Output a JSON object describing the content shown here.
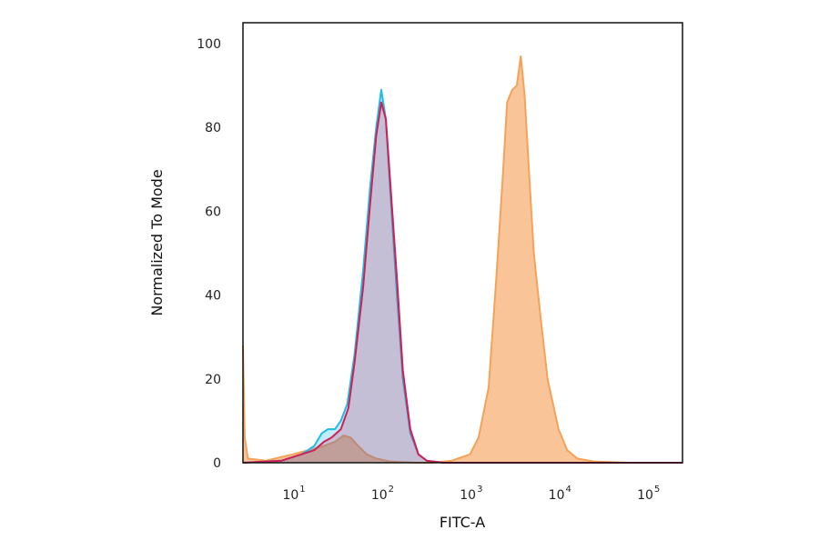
{
  "chart_data": {
    "type": "area",
    "title": "",
    "xlabel": "FITC-A",
    "ylabel": "Normalized To Mode",
    "x_scale": "log",
    "xlim": [
      2.2,
      200000
    ],
    "ylim": [
      0,
      105
    ],
    "y_ticks": [
      "0",
      "20",
      "40",
      "60",
      "80",
      "100"
    ],
    "x_ticks": [
      {
        "value": 10,
        "base": "10",
        "exp": "1"
      },
      {
        "value": 100,
        "base": "10",
        "exp": "2"
      },
      {
        "value": 1000,
        "base": "10",
        "exp": "3"
      },
      {
        "value": 10000,
        "base": "10",
        "exp": "4"
      },
      {
        "value": 100000,
        "base": "10",
        "exp": "5"
      }
    ],
    "grid": false,
    "legend": "none",
    "series": [
      {
        "color": "#f5a259",
        "fill_opacity": 0.62,
        "points": [
          [
            2.2,
            28
          ],
          [
            2.3,
            6
          ],
          [
            2.5,
            1
          ],
          [
            4,
            0.5
          ],
          [
            8,
            2
          ],
          [
            12,
            3
          ],
          [
            18,
            4
          ],
          [
            24,
            5
          ],
          [
            30,
            6.5
          ],
          [
            36,
            6
          ],
          [
            44,
            4
          ],
          [
            55,
            2
          ],
          [
            70,
            1
          ],
          [
            100,
            0.3
          ],
          [
            200,
            0
          ],
          [
            300,
            0
          ],
          [
            500,
            0.5
          ],
          [
            800,
            2
          ],
          [
            1000,
            6
          ],
          [
            1300,
            18
          ],
          [
            1600,
            45
          ],
          [
            1900,
            70
          ],
          [
            2100,
            86
          ],
          [
            2400,
            89
          ],
          [
            2700,
            90
          ],
          [
            3000,
            97
          ],
          [
            3300,
            88
          ],
          [
            3700,
            70
          ],
          [
            4200,
            50
          ],
          [
            5000,
            35
          ],
          [
            6000,
            20
          ],
          [
            8000,
            8
          ],
          [
            10000,
            3
          ],
          [
            13000,
            1
          ],
          [
            20000,
            0.3
          ],
          [
            50000,
            0
          ],
          [
            200000,
            0
          ]
        ]
      },
      {
        "color": "#1fbce8",
        "fill_opacity": 0.28,
        "points": [
          [
            2.2,
            0
          ],
          [
            6,
            0.5
          ],
          [
            10,
            2
          ],
          [
            14,
            4
          ],
          [
            17,
            7
          ],
          [
            20,
            8
          ],
          [
            24,
            8
          ],
          [
            28,
            10
          ],
          [
            33,
            14
          ],
          [
            40,
            26
          ],
          [
            50,
            46
          ],
          [
            60,
            66
          ],
          [
            70,
            80
          ],
          [
            80,
            89
          ],
          [
            90,
            82
          ],
          [
            100,
            66
          ],
          [
            120,
            40
          ],
          [
            140,
            20
          ],
          [
            170,
            7
          ],
          [
            210,
            2
          ],
          [
            260,
            0.5
          ],
          [
            400,
            0
          ],
          [
            200000,
            0
          ]
        ]
      },
      {
        "color": "#d01f55",
        "fill_opacity": 0.22,
        "points": [
          [
            2.2,
            0
          ],
          [
            6,
            0.5
          ],
          [
            10,
            2
          ],
          [
            14,
            3
          ],
          [
            18,
            5
          ],
          [
            22,
            6
          ],
          [
            28,
            8
          ],
          [
            34,
            13
          ],
          [
            40,
            24
          ],
          [
            50,
            42
          ],
          [
            60,
            62
          ],
          [
            70,
            78
          ],
          [
            80,
            86
          ],
          [
            90,
            82
          ],
          [
            100,
            68
          ],
          [
            120,
            44
          ],
          [
            140,
            22
          ],
          [
            170,
            8
          ],
          [
            210,
            2
          ],
          [
            260,
            0.5
          ],
          [
            400,
            0
          ],
          [
            200000,
            0
          ]
        ]
      }
    ]
  }
}
